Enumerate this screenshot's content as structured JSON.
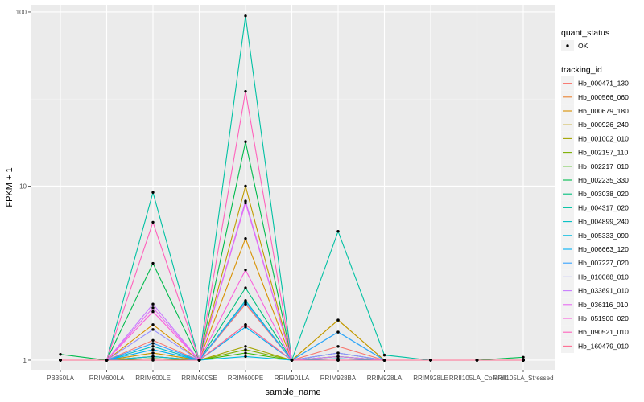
{
  "chart_data": {
    "type": "line",
    "xlabel": "sample_name",
    "ylabel": "FPKM + 1",
    "y_scale": "log10",
    "ylim": [
      0.88,
      110
    ],
    "y_ticks": [
      {
        "value": 1,
        "label": "1"
      },
      {
        "value": 10,
        "label": "10"
      },
      {
        "value": 100,
        "label": "100"
      }
    ],
    "grid": true,
    "legend_position": "right",
    "categories": [
      "PB350LA",
      "RRIM600LA",
      "RRIM600LE",
      "RRIM600SE",
      "RRIM600PE",
      "RRIM901LA",
      "RRIM928BA",
      "RRIM928LA",
      "RRIM928LE",
      "RRII105LA_Control",
      "RRII105LA_Stressed"
    ],
    "quant_legend": {
      "title": "quant_status",
      "entries": [
        "OK"
      ]
    },
    "series_legend_title": "tracking_id",
    "series": [
      {
        "name": "Hb_000471_130",
        "color": "#F8766D",
        "values": [
          1.0,
          1.0,
          1.3,
          1.0,
          2.1,
          1.0,
          1.2,
          1.0,
          1.0,
          1.0,
          1.0
        ]
      },
      {
        "name": "Hb_000566_060",
        "color": "#EA8331",
        "values": [
          1.0,
          1.0,
          1.1,
          1.0,
          1.6,
          1.0,
          1.1,
          1.0,
          1.0,
          1.0,
          1.0
        ]
      },
      {
        "name": "Hb_000679_180",
        "color": "#D89000",
        "values": [
          1.0,
          1.0,
          1.6,
          1.0,
          5.0,
          1.0,
          1.7,
          1.0,
          1.0,
          1.0,
          1.0
        ]
      },
      {
        "name": "Hb_000926_240",
        "color": "#C09B00",
        "values": [
          1.0,
          1.0,
          1.1,
          1.0,
          10.0,
          1.0,
          1.7,
          1.0,
          1.0,
          1.0,
          1.0
        ]
      },
      {
        "name": "Hb_001002_010",
        "color": "#A3A500",
        "values": [
          1.0,
          1.0,
          1.05,
          1.0,
          1.2,
          1.0,
          1.05,
          1.0,
          1.0,
          1.0,
          1.0
        ]
      },
      {
        "name": "Hb_002157_110",
        "color": "#7CAE00",
        "values": [
          1.0,
          1.0,
          1.05,
          1.0,
          1.15,
          1.0,
          1.05,
          1.0,
          1.0,
          1.0,
          1.0
        ]
      },
      {
        "name": "Hb_002217_010",
        "color": "#39B600",
        "values": [
          1.0,
          1.0,
          1.02,
          1.0,
          1.1,
          1.0,
          1.0,
          1.0,
          1.0,
          1.0,
          1.0
        ]
      },
      {
        "name": "Hb_002235_330",
        "color": "#00BB4E",
        "values": [
          1.08,
          1.0,
          3.6,
          1.0,
          18.0,
          1.0,
          1.0,
          1.0,
          1.0,
          1.0,
          1.04
        ]
      },
      {
        "name": "Hb_003038_020",
        "color": "#00BF7D",
        "values": [
          1.0,
          1.0,
          1.0,
          1.0,
          2.6,
          1.0,
          1.0,
          1.0,
          1.0,
          1.0,
          1.0
        ]
      },
      {
        "name": "Hb_004317_020",
        "color": "#00C1A3",
        "values": [
          1.0,
          1.0,
          9.2,
          1.0,
          95.0,
          1.0,
          5.5,
          1.07,
          1.0,
          1.0,
          1.0
        ]
      },
      {
        "name": "Hb_004899_240",
        "color": "#00BFC4",
        "values": [
          1.0,
          1.0,
          1.2,
          1.0,
          2.2,
          1.0,
          1.45,
          1.0,
          1.0,
          1.0,
          1.0
        ]
      },
      {
        "name": "Hb_005333_090",
        "color": "#00BAE0",
        "values": [
          1.0,
          1.0,
          1.05,
          1.0,
          1.05,
          1.0,
          1.02,
          1.0,
          1.0,
          1.0,
          1.0
        ]
      },
      {
        "name": "Hb_006663_120",
        "color": "#00B0F6",
        "values": [
          1.0,
          1.0,
          1.15,
          1.0,
          1.55,
          1.0,
          1.1,
          1.0,
          1.0,
          1.0,
          1.0
        ]
      },
      {
        "name": "Hb_007227_020",
        "color": "#35A2FF",
        "values": [
          1.0,
          1.0,
          1.25,
          1.0,
          2.15,
          1.0,
          1.45,
          1.0,
          1.0,
          1.0,
          1.0
        ]
      },
      {
        "name": "Hb_010068_010",
        "color": "#9590FF",
        "values": [
          1.0,
          1.0,
          1.5,
          1.0,
          1.6,
          1.0,
          1.1,
          1.0,
          1.0,
          1.0,
          1.0
        ]
      },
      {
        "name": "Hb_033691_010",
        "color": "#C77CFF",
        "values": [
          1.0,
          1.0,
          2.1,
          1.0,
          8.2,
          1.0,
          1.05,
          1.0,
          1.0,
          1.0,
          1.0
        ]
      },
      {
        "name": "Hb_036116_010",
        "color": "#E76BF3",
        "values": [
          1.0,
          1.0,
          2.0,
          1.0,
          8.0,
          1.0,
          1.0,
          1.0,
          1.0,
          1.0,
          1.0
        ]
      },
      {
        "name": "Hb_051900_020",
        "color": "#FA62DB",
        "values": [
          1.0,
          1.0,
          1.9,
          1.0,
          3.3,
          1.0,
          1.0,
          1.0,
          1.0,
          1.0,
          1.0
        ]
      },
      {
        "name": "Hb_090521_010",
        "color": "#FF62BC",
        "values": [
          1.0,
          1.0,
          6.2,
          1.0,
          35.0,
          1.0,
          1.0,
          1.0,
          1.0,
          1.0,
          1.0
        ]
      },
      {
        "name": "Hb_160479_010",
        "color": "#FF6C91",
        "values": [
          1.0,
          1.0,
          1.0,
          1.0,
          1.6,
          1.0,
          1.0,
          1.0,
          1.0,
          1.0,
          1.0
        ]
      }
    ]
  }
}
